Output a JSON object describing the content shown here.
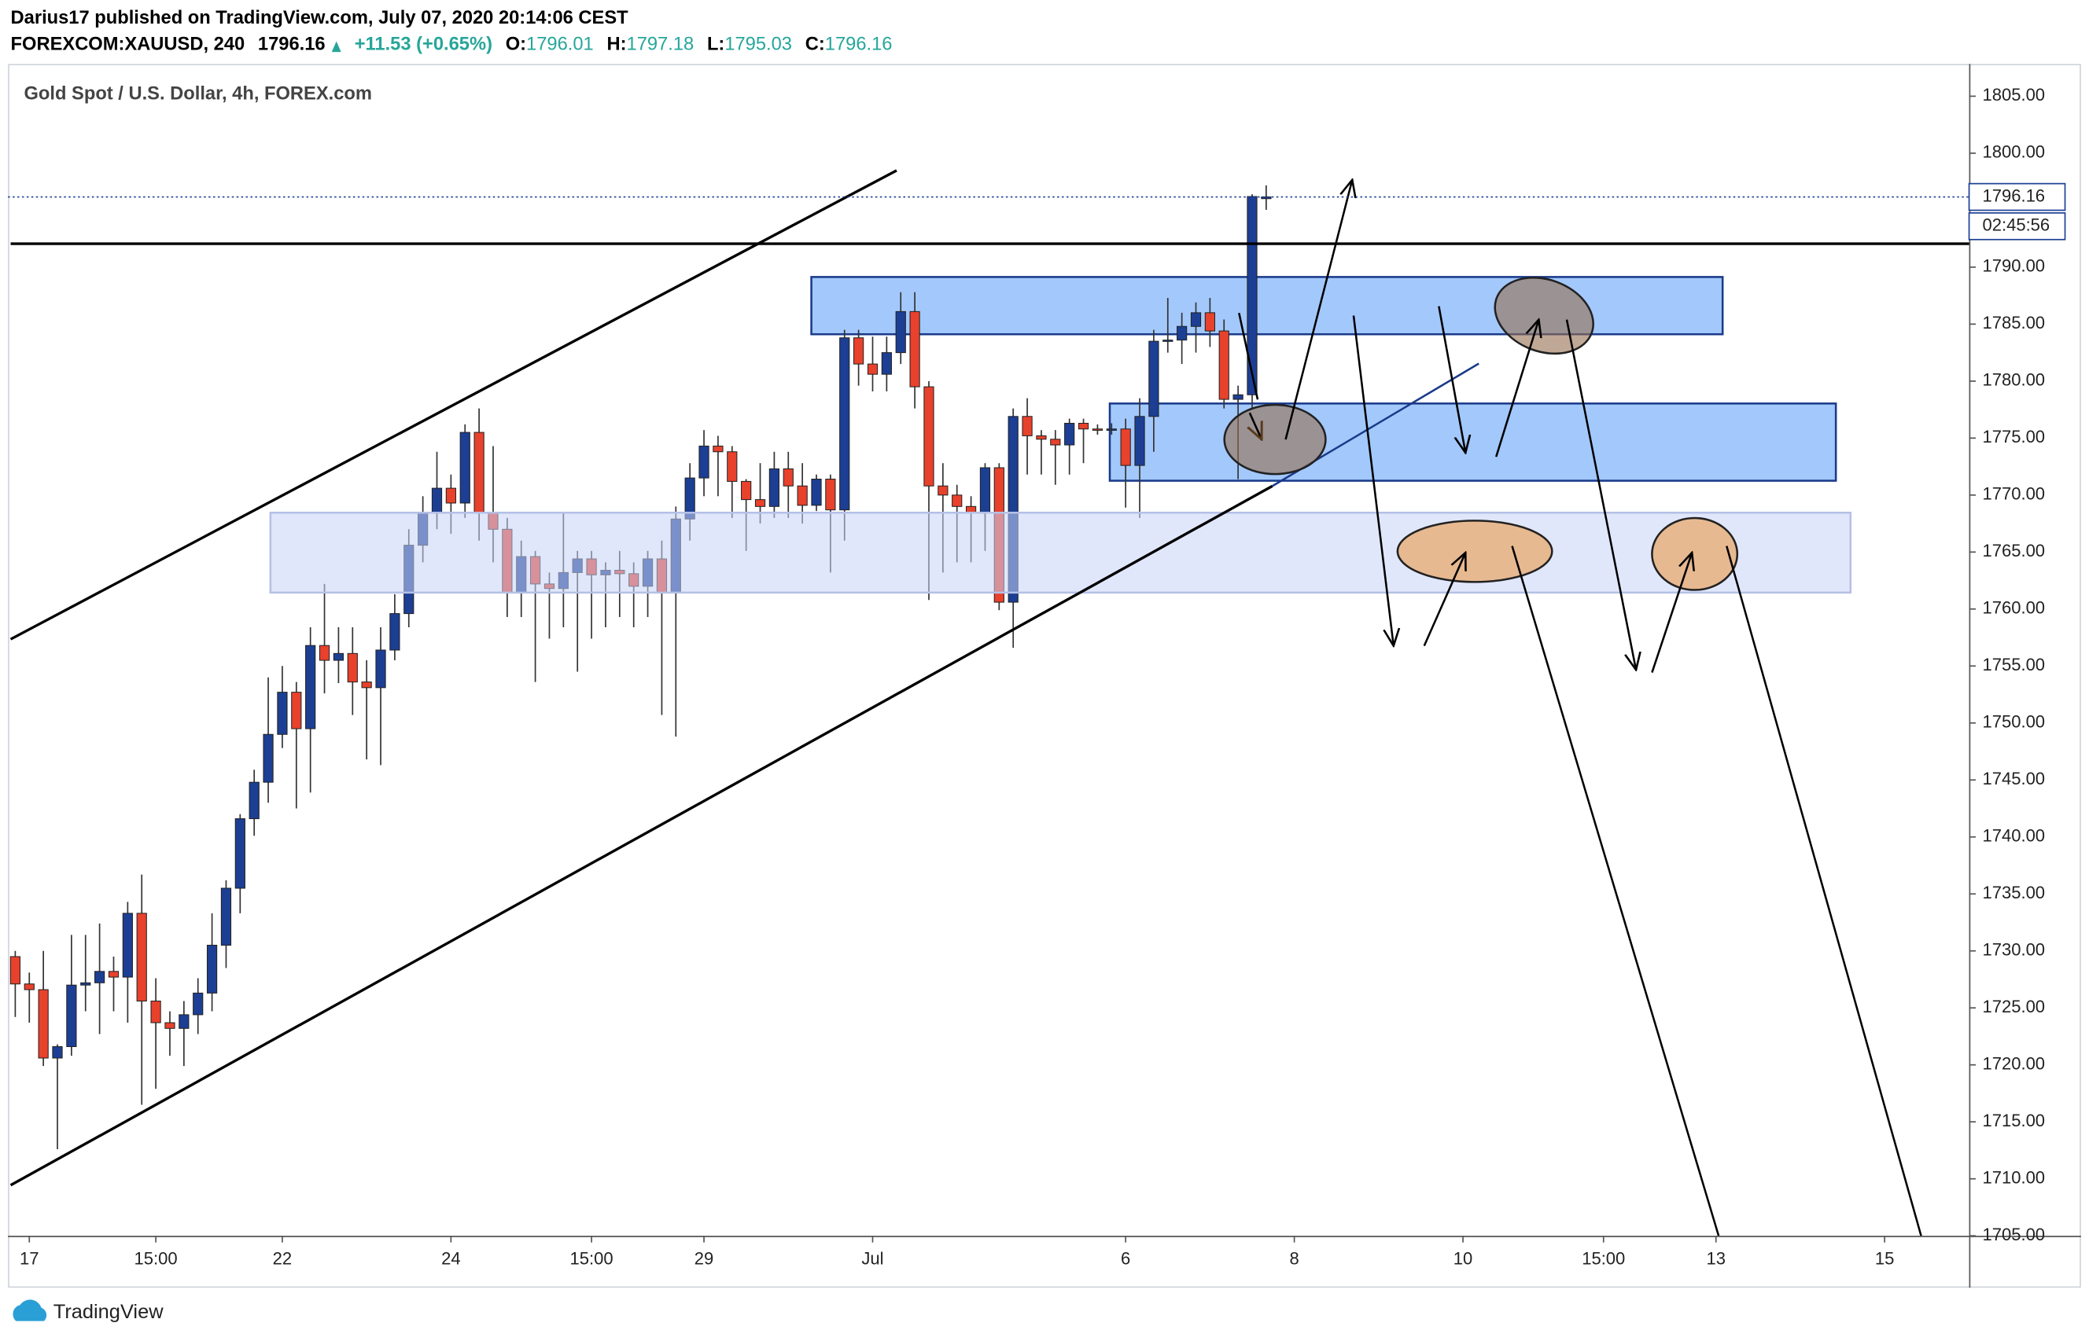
{
  "header": {
    "publisher": "Darius17 published on TradingView.com, July 07, 2020 20:14:06 CEST",
    "symbol": "FOREXCOM:XAUUSD, 240",
    "price": "1796.16",
    "change": "+11.53 (+0.65%)",
    "ohlc": [
      {
        "label": "O:",
        "value": "1796.01"
      },
      {
        "label": "H:",
        "value": "1797.18"
      },
      {
        "label": "L:",
        "value": "1795.03"
      },
      {
        "label": "C:",
        "value": "1796.16"
      }
    ]
  },
  "chart_data": {
    "type": "candlestick",
    "title": "Gold Spot / U.S. Dollar, 4h, FOREX.com",
    "up_color": "#1c3f94",
    "down_color": "#e8412c",
    "grid": false,
    "countdown": "02:45:56",
    "categories": [
      null,
      "17",
      null,
      null,
      null,
      null,
      null,
      null,
      null,
      null,
      "15:00",
      null,
      null,
      null,
      null,
      null,
      null,
      null,
      null,
      "22",
      null,
      null,
      null,
      null,
      null,
      null,
      null,
      null,
      null,
      null,
      null,
      "24",
      null,
      null,
      null,
      null,
      null,
      null,
      null,
      null,
      null,
      "15:00",
      null,
      null,
      null,
      null,
      null,
      null,
      null,
      "29",
      null,
      null,
      null,
      null,
      null,
      null,
      null,
      null,
      null,
      null,
      null,
      "Jul",
      null,
      null,
      null,
      null,
      null,
      null,
      null,
      null,
      null,
      null,
      null,
      null,
      null,
      null,
      null,
      null,
      null,
      "6",
      null,
      null,
      null,
      null,
      null,
      null,
      null,
      null,
      null,
      null,
      null,
      "8",
      null,
      null,
      null,
      null,
      null,
      null,
      null,
      null,
      null,
      null,
      null,
      "10",
      null,
      null,
      null,
      null,
      null,
      null,
      null,
      null,
      null,
      "15:00",
      null,
      null,
      null,
      null,
      null,
      null,
      null,
      "13",
      null,
      null,
      null,
      null,
      null,
      null,
      null,
      null,
      null,
      null,
      null,
      "15",
      null,
      null,
      null,
      null,
      null,
      null
    ],
    "open": [
      1729.5,
      1727.1,
      1726.6,
      1720.6,
      1721.6,
      1727.0,
      1727.2,
      1728.2,
      1727.7,
      1733.3,
      1725.6,
      1723.7,
      1723.2,
      1724.4,
      1726.3,
      1730.5,
      1735.5,
      1741.6,
      1744.8,
      1749.0,
      1752.7,
      1749.5,
      1756.8,
      1755.5,
      1756.1,
      1753.6,
      1753.1,
      1756.4,
      1759.6,
      1765.6,
      1768.5,
      1770.6,
      1769.3,
      1775.5,
      1768.5,
      1767.0,
      1761.4,
      1764.6,
      1762.2,
      1761.8,
      1763.2,
      1764.4,
      1763.0,
      1763.4,
      1763.1,
      1762.0,
      1764.4,
      1761.4,
      1767.9,
      1771.5,
      1774.3,
      1773.8,
      1771.2,
      1769.6,
      1769.0,
      1772.3,
      1770.8,
      1769.1,
      1771.4,
      1768.7,
      1783.8,
      1781.5,
      1780.6,
      1782.5,
      1786.1,
      1779.5,
      1770.8,
      1770.0,
      1769.0,
      1768.5,
      1772.4,
      1760.6,
      1776.9,
      1775.2,
      1774.9,
      1774.4,
      1776.3,
      1775.8,
      1775.7,
      1775.8,
      1772.6,
      1776.9,
      1783.5,
      1783.6,
      1784.8,
      1786.0,
      1784.4,
      1778.4,
      1778.8,
      1796.01,
      null,
      null,
      null,
      null,
      null,
      null,
      null,
      null,
      null,
      null,
      null,
      null,
      null,
      null,
      null,
      null,
      null,
      null,
      null,
      null,
      null,
      null,
      null,
      null,
      null,
      null,
      null,
      null,
      null,
      null,
      null,
      null,
      null,
      null,
      null,
      null,
      null,
      null,
      null,
      null,
      null,
      null,
      null,
      null,
      null,
      null,
      null,
      null,
      null,
      null
    ],
    "high": [
      1730.0,
      1728.1,
      1730.0,
      1721.8,
      1731.4,
      1731.4,
      1732.4,
      1729.5,
      1734.3,
      1736.7,
      1727.6,
      1724.7,
      1725.6,
      1727.6,
      1733.3,
      1736.2,
      1742.0,
      1745.9,
      1754.0,
      1755.0,
      1753.6,
      1758.4,
      1762.2,
      1758.4,
      1758.4,
      1755.5,
      1758.4,
      1761.3,
      1767.0,
      1769.9,
      1773.8,
      1771.8,
      1776.2,
      1777.6,
      1774.3,
      1768.0,
      1766.0,
      1765.1,
      1763.2,
      1768.5,
      1765.1,
      1765.1,
      1764.1,
      1765.1,
      1764.1,
      1765.1,
      1766.0,
      1769.0,
      1772.8,
      1775.7,
      1775.2,
      1774.3,
      1771.4,
      1772.8,
      1773.8,
      1773.8,
      1772.8,
      1771.8,
      1771.8,
      1784.5,
      1784.5,
      1783.9,
      1783.9,
      1787.8,
      1787.8,
      1780.0,
      1772.8,
      1770.9,
      1769.9,
      1772.8,
      1772.8,
      1777.6,
      1778.5,
      1775.7,
      1775.7,
      1776.7,
      1776.7,
      1776.2,
      1776.3,
      1776.7,
      1778.5,
      1784.5,
      1787.3,
      1786.0,
      1786.9,
      1787.3,
      1785.4,
      1779.6,
      1796.4,
      1797.18,
      null,
      null,
      null,
      null,
      null,
      null,
      null,
      null,
      null,
      null,
      null,
      null,
      null,
      null,
      null,
      null,
      null,
      null,
      null,
      null,
      null,
      null,
      null,
      null,
      null,
      null,
      null,
      null,
      null,
      null,
      null,
      null,
      null,
      null,
      null,
      null,
      null,
      null,
      null,
      null,
      null,
      null,
      null,
      null,
      null,
      null,
      null,
      null,
      null,
      null
    ],
    "low": [
      1724.2,
      1723.7,
      1719.9,
      1712.6,
      1720.8,
      1724.7,
      1722.7,
      1724.7,
      1723.7,
      1716.5,
      1717.9,
      1720.8,
      1719.9,
      1722.7,
      1724.7,
      1728.5,
      1733.3,
      1740.1,
      1743.0,
      1747.8,
      1742.5,
      1743.9,
      1752.6,
      1753.5,
      1750.7,
      1746.8,
      1746.3,
      1755.5,
      1758.4,
      1764.1,
      1767.0,
      1766.6,
      1768.0,
      1766.0,
      1764.1,
      1759.3,
      1759.3,
      1753.6,
      1757.4,
      1758.4,
      1754.5,
      1757.4,
      1758.4,
      1759.3,
      1758.4,
      1759.3,
      1750.7,
      1748.8,
      1766.0,
      1769.9,
      1769.9,
      1768.0,
      1765.1,
      1767.5,
      1768.0,
      1768.0,
      1767.5,
      1768.6,
      1763.2,
      1766.0,
      1779.6,
      1779.1,
      1779.1,
      1781.5,
      1777.6,
      1760.8,
      1763.2,
      1764.1,
      1764.1,
      1765.1,
      1759.9,
      1756.6,
      1771.8,
      1771.8,
      1770.9,
      1771.8,
      1772.8,
      1775.3,
      1775.3,
      1768.9,
      1768.0,
      1773.8,
      1782.5,
      1781.5,
      1782.5,
      1783.0,
      1777.6,
      1771.4,
      1777.6,
      1795.03,
      null,
      null,
      null,
      null,
      null,
      null,
      null,
      null,
      null,
      null,
      null,
      null,
      null,
      null,
      null,
      null,
      null,
      null,
      null,
      null,
      null,
      null,
      null,
      null,
      null,
      null,
      null,
      null,
      null,
      null,
      null,
      null,
      null,
      null,
      null,
      null,
      null,
      null,
      null,
      null,
      null,
      null,
      null,
      null,
      null,
      null,
      null,
      null,
      null,
      null
    ],
    "close": [
      1727.1,
      1726.6,
      1720.6,
      1721.6,
      1727.0,
      1727.2,
      1728.2,
      1727.7,
      1733.3,
      1725.6,
      1723.7,
      1723.2,
      1724.4,
      1726.3,
      1730.5,
      1735.5,
      1741.6,
      1744.8,
      1749.0,
      1752.7,
      1749.5,
      1756.8,
      1755.5,
      1756.1,
      1753.6,
      1753.1,
      1756.4,
      1759.6,
      1765.6,
      1768.5,
      1770.6,
      1769.3,
      1775.5,
      1768.5,
      1767.0,
      1761.4,
      1764.6,
      1762.2,
      1761.8,
      1763.2,
      1764.4,
      1763.0,
      1763.4,
      1763.1,
      1762.0,
      1764.4,
      1761.4,
      1767.9,
      1771.5,
      1774.3,
      1773.8,
      1771.2,
      1769.6,
      1769.0,
      1772.3,
      1770.8,
      1769.1,
      1771.4,
      1768.7,
      1783.8,
      1781.5,
      1780.6,
      1782.5,
      1786.1,
      1779.5,
      1770.8,
      1770.0,
      1769.0,
      1768.5,
      1772.4,
      1760.6,
      1776.9,
      1775.2,
      1774.9,
      1774.4,
      1776.3,
      1775.8,
      1775.7,
      1775.8,
      1772.6,
      1776.9,
      1783.5,
      1783.6,
      1784.8,
      1786.0,
      1784.4,
      1778.4,
      1778.8,
      1796.2,
      1796.16,
      null,
      null,
      null,
      null,
      null,
      null,
      null,
      null,
      null,
      null,
      null,
      null,
      null,
      null,
      null,
      null,
      null,
      null,
      null,
      null,
      null,
      null,
      null,
      null,
      null,
      null,
      null,
      null,
      null,
      null,
      null,
      null,
      null,
      null,
      null,
      null,
      null,
      null,
      null,
      null,
      null,
      null,
      null,
      null,
      null,
      null,
      null,
      null,
      null,
      null
    ],
    "ylim": [
      1705,
      1807.6
    ],
    "yticks": [
      {
        "value": 1705,
        "label": "1705.00"
      },
      {
        "value": 1710,
        "label": "1710.00"
      },
      {
        "value": 1715,
        "label": "1715.00"
      },
      {
        "value": 1720,
        "label": "1720.00"
      },
      {
        "value": 1725,
        "label": "1725.00"
      },
      {
        "value": 1730,
        "label": "1730.00"
      },
      {
        "value": 1735,
        "label": "1735.00"
      },
      {
        "value": 1740,
        "label": "1740.00"
      },
      {
        "value": 1745,
        "label": "1745.00"
      },
      {
        "value": 1750,
        "label": "1750.00"
      },
      {
        "value": 1755,
        "label": "1755.00"
      },
      {
        "value": 1760,
        "label": "1760.00"
      },
      {
        "value": 1765,
        "label": "1765.00"
      },
      {
        "value": 1770,
        "label": "1770.00"
      },
      {
        "value": 1775,
        "label": "1775.00"
      },
      {
        "value": 1780,
        "label": "1780.00"
      },
      {
        "value": 1785,
        "label": "1785.00"
      },
      {
        "value": 1790,
        "label": "1790.00"
      },
      {
        "value": 1800,
        "label": "1800.00"
      },
      {
        "value": 1805,
        "label": "1805.00"
      }
    ]
  },
  "footer": {
    "brand": "TradingView"
  }
}
